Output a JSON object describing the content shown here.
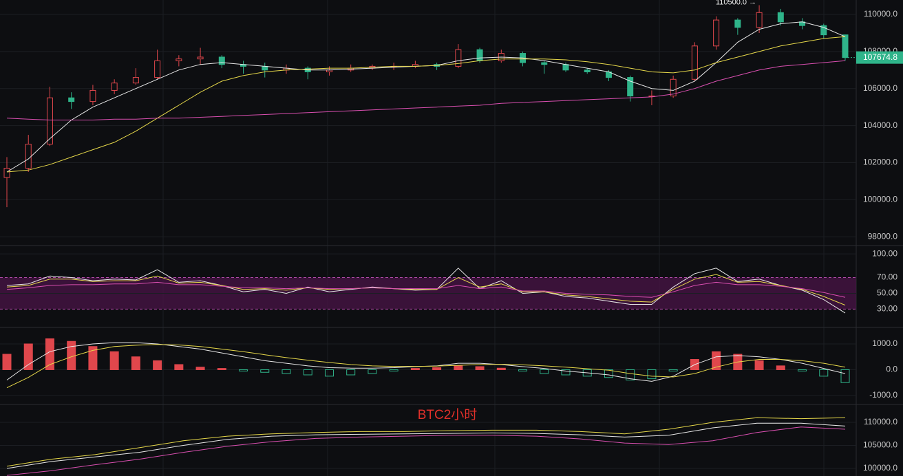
{
  "watermark": "BTC2小时",
  "chart_data": [
    {
      "type": "candlestick",
      "annotation": "110500.0 →",
      "up_color": "#e0474c",
      "down_color": "#2fb48a",
      "grid": true,
      "open": [
        101200,
        101700,
        103000,
        105500,
        105300,
        105900,
        106300,
        106600,
        107500,
        107600,
        107700,
        107300,
        107200,
        107000,
        107100,
        106900,
        107000,
        107100,
        107200,
        107200,
        107300,
        107200,
        108100,
        107500,
        107900,
        107400,
        107300,
        107000,
        106900,
        106600,
        105600,
        105600,
        106500,
        108300,
        109700,
        109300,
        110100,
        109600,
        109400,
        108900
      ],
      "high": [
        102300,
        103500,
        106100,
        105800,
        106200,
        106500,
        107100,
        108100,
        107800,
        108200,
        107800,
        107500,
        107400,
        107300,
        107200,
        107200,
        107300,
        107300,
        107400,
        107500,
        107400,
        108400,
        108200,
        108100,
        108000,
        107500,
        107400,
        107100,
        107000,
        106700,
        105900,
        106700,
        108500,
        109900,
        109800,
        110500,
        110300,
        109800,
        109500,
        108900
      ],
      "low": [
        99600,
        101500,
        102900,
        104900,
        105100,
        105700,
        106200,
        106500,
        107200,
        107300,
        107100,
        106800,
        106600,
        106800,
        106500,
        106700,
        106900,
        107000,
        107000,
        107100,
        107000,
        107100,
        107400,
        107400,
        107200,
        106800,
        106900,
        106800,
        106400,
        105300,
        105100,
        105500,
        106400,
        108100,
        108900,
        109000,
        109400,
        109200,
        108700,
        107500
      ],
      "close": [
        101700,
        103000,
        105500,
        105300,
        105900,
        106300,
        106600,
        107500,
        107600,
        107700,
        107300,
        107200,
        107000,
        107100,
        106900,
        107000,
        107100,
        107200,
        107200,
        107300,
        107200,
        108100,
        107500,
        107900,
        107400,
        107300,
        107000,
        106900,
        106600,
        105600,
        105600,
        106500,
        108300,
        109700,
        109300,
        110100,
        109600,
        109400,
        108900,
        107674.8
      ],
      "series": [
        {
          "color": "#e8e8e8",
          "values": [
            101500,
            102200,
            103300,
            104300,
            105000,
            105500,
            106000,
            106500,
            107000,
            107300,
            107400,
            107300,
            107200,
            107100,
            107000,
            107000,
            107050,
            107100,
            107150,
            107200,
            107250,
            107500,
            107650,
            107700,
            107650,
            107500,
            107300,
            107100,
            106900,
            106400,
            106000,
            105900,
            106400,
            107400,
            108500,
            109200,
            109500,
            109600,
            109300,
            108800
          ]
        },
        {
          "color": "#e6d84a",
          "values": [
            101500,
            101600,
            101900,
            102300,
            102700,
            103100,
            103700,
            104400,
            105100,
            105800,
            106400,
            106700,
            106900,
            107000,
            107050,
            107100,
            107100,
            107150,
            107200,
            107200,
            107250,
            107350,
            107500,
            107600,
            107600,
            107600,
            107550,
            107450,
            107300,
            107100,
            106900,
            106850,
            107000,
            107400,
            107700,
            108000,
            108300,
            108500,
            108700,
            108800
          ]
        },
        {
          "color": "#d94fb0",
          "values": [
            104400,
            104350,
            104300,
            104300,
            104300,
            104350,
            104350,
            104400,
            104400,
            104450,
            104500,
            104550,
            104600,
            104650,
            104700,
            104750,
            104800,
            104850,
            104900,
            104950,
            105000,
            105050,
            105100,
            105200,
            105250,
            105300,
            105350,
            105400,
            105450,
            105500,
            105550,
            105700,
            106000,
            106400,
            106700,
            107000,
            107200,
            107300,
            107400,
            107500
          ]
        }
      ],
      "ylim": [
        97600,
        110780
      ],
      "yticks": [
        {
          "value": 98000,
          "label": "98000.0"
        },
        {
          "value": 100000,
          "label": "100000.0"
        },
        {
          "value": 102000,
          "label": "102000.0"
        },
        {
          "value": 104000,
          "label": "104000.0"
        },
        {
          "value": 106000,
          "label": "106000.0"
        },
        {
          "value": 108000,
          "label": "108000.0"
        },
        {
          "value": 110000,
          "label": "110000.0"
        }
      ]
    },
    {
      "type": "line",
      "band_color": "#4a1447",
      "grid": true,
      "series": [
        {
          "color": "#e8e8e8",
          "values": [
            60,
            62,
            72,
            70,
            66,
            68,
            67,
            80,
            64,
            66,
            60,
            52,
            55,
            50,
            58,
            52,
            55,
            58,
            56,
            54,
            55,
            82,
            56,
            66,
            50,
            52,
            46,
            44,
            40,
            36,
            36,
            58,
            75,
            82,
            65,
            68,
            60,
            54,
            42,
            25
          ]
        },
        {
          "color": "#e6d84a",
          "values": [
            58,
            60,
            68,
            68,
            65,
            66,
            66,
            72,
            63,
            64,
            60,
            55,
            56,
            54,
            57,
            55,
            56,
            57,
            56,
            55,
            55,
            70,
            58,
            62,
            52,
            52,
            48,
            46,
            43,
            40,
            39,
            55,
            68,
            74,
            64,
            65,
            60,
            55,
            46,
            35
          ]
        },
        {
          "color": "#d94fb0",
          "values": [
            55,
            57,
            60,
            61,
            61,
            62,
            62,
            64,
            61,
            61,
            59,
            57,
            57,
            56,
            57,
            56,
            56,
            57,
            56,
            56,
            56,
            60,
            56,
            58,
            53,
            53,
            50,
            49,
            48,
            46,
            45,
            52,
            60,
            64,
            61,
            61,
            59,
            56,
            51,
            45
          ]
        }
      ],
      "ylim": [
        12,
        108
      ],
      "yticks": [
        {
          "value": 30,
          "label": "30.00"
        },
        {
          "value": 50,
          "label": "50.00"
        },
        {
          "value": 70,
          "label": "70.00"
        },
        {
          "value": 100,
          "label": "100.00"
        }
      ]
    },
    {
      "type": "macd",
      "up_color": "#e0474c",
      "down_color": "#2fb48a",
      "grid": true,
      "values": [
        600,
        1000,
        1200,
        1100,
        900,
        700,
        500,
        350,
        200,
        100,
        50,
        -50,
        -100,
        -150,
        -200,
        -250,
        -200,
        -150,
        -50,
        50,
        80,
        150,
        120,
        60,
        -50,
        -150,
        -200,
        -250,
        -300,
        -400,
        -350,
        -50,
        400,
        700,
        600,
        350,
        150,
        -50,
        -250,
        -500
      ],
      "series": [
        {
          "color": "#e8e8e8",
          "values": [
            -400,
            200,
            700,
            900,
            1000,
            1050,
            1050,
            1000,
            900,
            800,
            650,
            500,
            350,
            250,
            150,
            80,
            60,
            60,
            80,
            120,
            150,
            250,
            250,
            200,
            120,
            50,
            -50,
            -120,
            -200,
            -350,
            -450,
            -250,
            200,
            500,
            550,
            500,
            400,
            250,
            50,
            -150
          ]
        },
        {
          "color": "#e6d84a",
          "values": [
            -700,
            -300,
            200,
            500,
            750,
            900,
            950,
            980,
            960,
            900,
            800,
            700,
            580,
            470,
            370,
            280,
            200,
            150,
            130,
            130,
            140,
            170,
            200,
            210,
            190,
            150,
            100,
            40,
            -20,
            -150,
            -250,
            -280,
            -150,
            100,
            300,
            400,
            400,
            350,
            250,
            100
          ]
        }
      ],
      "ylim": [
        -1267,
        1533
      ],
      "yticks": [
        {
          "value": -1000,
          "label": "-1000.0"
        },
        {
          "value": 0,
          "label": "0.0"
        },
        {
          "value": 1000,
          "label": "1000.0"
        }
      ]
    },
    {
      "type": "line",
      "grid": true,
      "series": [
        {
          "color": "#e6d84a",
          "values": [
            100500,
            102000,
            103000,
            104500,
            106000,
            107000,
            107500,
            107800,
            108000,
            108000,
            108200,
            108300,
            108300,
            108000,
            107500,
            108500,
            110000,
            111000,
            110800,
            111000
          ]
        },
        {
          "color": "#e8e8e8",
          "values": [
            100000,
            101500,
            102500,
            103500,
            105000,
            106300,
            107000,
            107300,
            107400,
            107500,
            107600,
            107700,
            107600,
            107300,
            106800,
            107200,
            108800,
            109800,
            109800,
            109200
          ]
        },
        {
          "color": "#d94fb0",
          "values": [
            98500,
            99500,
            100800,
            102000,
            103500,
            104800,
            105800,
            106500,
            106800,
            107000,
            107200,
            107200,
            107000,
            106400,
            105500,
            105200,
            106000,
            107800,
            109000,
            108500
          ]
        }
      ],
      "ylim": [
        98360,
        113580
      ],
      "yticks": [
        {
          "value": 100000,
          "label": "100000.0"
        },
        {
          "value": 105000,
          "label": "105000.0"
        },
        {
          "value": 110000,
          "label": "110000.0"
        }
      ]
    }
  ]
}
